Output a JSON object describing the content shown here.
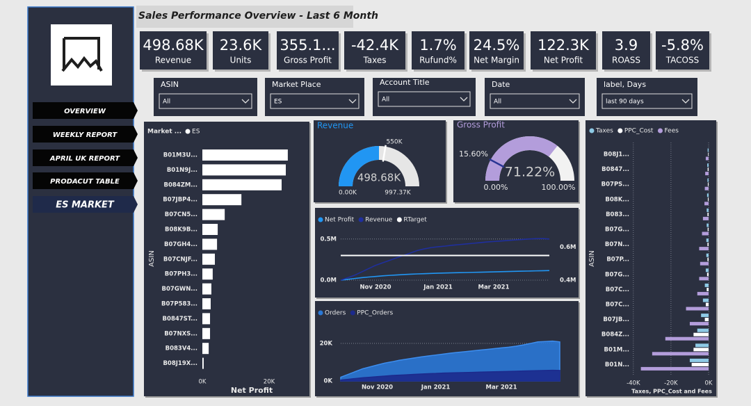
{
  "header": {
    "title": "Sales Performance Overview - Last 6 Month"
  },
  "nav": [
    "OVERVIEW",
    "WEEKLY REPORT",
    "APRIL UK REPORT",
    "PRODACUT TABLE",
    "ES MARKET"
  ],
  "kpis": [
    {
      "value": "498.68K",
      "label": "Revenue"
    },
    {
      "value": "23.6K",
      "label": "Units"
    },
    {
      "value": "355.1...",
      "label": "Gross Profit"
    },
    {
      "value": "-42.4K",
      "label": "Taxes"
    },
    {
      "value": "1.7%",
      "label": "Rufund%"
    },
    {
      "value": "24.5%",
      "label": "Net Margin"
    },
    {
      "value": "122.3K",
      "label": "Net Profit"
    },
    {
      "value": "3.9",
      "label": "ROASS"
    },
    {
      "value": "-5.8%",
      "label": "TACOSS"
    }
  ],
  "slicers": [
    {
      "label": "ASIN",
      "value": "All"
    },
    {
      "label": "Market Place",
      "value": "ES"
    },
    {
      "label": "Account Title",
      "value": "All"
    },
    {
      "label": "Date",
      "value": "All"
    },
    {
      "label": "label, Days",
      "value": "last 90 days"
    }
  ],
  "chart_data": [
    {
      "type": "bar",
      "legend_title": "Market ...",
      "categories": [
        "B01M3U...",
        "B01N9J...",
        "B084ZM...",
        "B07JBP4...",
        "B07CN5...",
        "B08K9B...",
        "B07GH4...",
        "B07CNJF...",
        "B07PH3...",
        "B07GWN...",
        "B07P583...",
        "B0847ST...",
        "B07NXS...",
        "B083V4...",
        "B08J19X..."
      ],
      "series": [
        {
          "name": "ES",
          "color": "#ffffff",
          "values": [
            25600,
            25000,
            23750,
            11700,
            6700,
            4600,
            4400,
            3750,
            3100,
            2700,
            2500,
            2300,
            2300,
            1900,
            400
          ]
        }
      ],
      "xlim": [
        0,
        30000
      ],
      "xticks": [
        {
          "value": 0,
          "label": "0K"
        },
        {
          "value": 20000,
          "label": "20K"
        }
      ],
      "xlabel": "Net Profit",
      "ylabel": "ASIN"
    },
    {
      "type": "gauge",
      "title": "Revenue",
      "title_color": "#2196f3",
      "value": 498680,
      "value_label": "498.68K",
      "min": 0,
      "min_label": "0.00K",
      "max": 997370,
      "max_label": "997.37K",
      "target": 550000,
      "target_label": "550K",
      "color": "#2196f3",
      "track_color": "#e6e6e6",
      "target_color": "#ffffff"
    },
    {
      "type": "gauge",
      "title": "Gross Profit",
      "title_color": "#b39ddb",
      "value": 71.22,
      "value_label": "71.22%",
      "min": 0,
      "min_label": "0.00%",
      "max": 100,
      "max_label": "100.00%",
      "target": 15.6,
      "target_label": "15.60%",
      "color": "#b39ddb",
      "track_color": "#f2f2f2",
      "target_color": "#283593"
    },
    {
      "type": "line",
      "categories": [
        null,
        null,
        null,
        null,
        null,
        "Nov 2020",
        null,
        null,
        null,
        null,
        null,
        null,
        null,
        null,
        "Jan 2021",
        null,
        null,
        null,
        null,
        null,
        null,
        null,
        "Mar 2021",
        null,
        null,
        null,
        null,
        null,
        null,
        null,
        null
      ],
      "series": [
        {
          "name": "Net Profit",
          "color": "#2196f3",
          "values": [
            0,
            10000,
            20000,
            30000,
            38000,
            45000,
            52000,
            58000,
            63000,
            68000,
            72000,
            76000,
            79000,
            82000,
            85000,
            87000,
            89000,
            91000,
            93000,
            95000,
            97000,
            99000,
            101000,
            103000,
            105000,
            107000,
            109000,
            111000,
            113000,
            115000,
            117000
          ]
        },
        {
          "name": "Revenue",
          "color": "#1f2f9e",
          "axis": "y2",
          "values": [
            400000,
            415000,
            430000,
            450000,
            470000,
            490000,
            505000,
            520000,
            535000,
            550000,
            565000,
            580000,
            590000,
            598000,
            603000,
            607000,
            612000,
            616000,
            620000,
            624000,
            628000,
            632000,
            635000,
            638000,
            641000,
            644000,
            647000,
            650000,
            652000,
            653000,
            650000
          ]
        },
        {
          "name": "RTarget",
          "color": "#ffffff",
          "axis": "y2",
          "values": [
            550000,
            550000,
            550000,
            550000,
            550000,
            550000,
            550000,
            550000,
            550000,
            550000,
            550000,
            550000,
            550000,
            550000,
            550000,
            550000,
            550000,
            550000,
            550000,
            550000,
            550000,
            550000,
            550000,
            550000,
            550000,
            550000,
            550000,
            550000,
            550000,
            550000,
            550000
          ]
        }
      ],
      "ylim": [
        0,
        600000
      ],
      "yticks": [
        {
          "value": 0,
          "label": "0.0M"
        },
        {
          "value": 500000,
          "label": "0.5M"
        }
      ],
      "y2lim": [
        400000,
        700000
      ],
      "y2ticks": [
        {
          "value": 400000,
          "label": "0.4M"
        },
        {
          "value": 600000,
          "label": "0.6M"
        }
      ],
      "grid": true
    },
    {
      "type": "area",
      "categories": [
        null,
        null,
        null,
        null,
        null,
        "Nov 2020",
        null,
        null,
        null,
        null,
        null,
        null,
        null,
        "Jan 2021",
        null,
        null,
        null,
        null,
        null,
        null,
        null,
        null,
        "Mar 2021",
        null,
        null,
        null,
        null,
        null,
        null,
        null,
        null
      ],
      "series": [
        {
          "name": "Orders",
          "color": "#2a78d6",
          "values": [
            2000,
            3500,
            5000,
            6500,
            7500,
            8500,
            9500,
            10200,
            11000,
            11600,
            12200,
            12800,
            13300,
            13800,
            14300,
            14800,
            15200,
            15600,
            16000,
            16400,
            16800,
            17200,
            17600,
            18000,
            18500,
            19200,
            20000,
            20800,
            21000,
            21200,
            20800
          ]
        },
        {
          "name": "PPC_Orders",
          "color": "#1c2a8c",
          "values": [
            500,
            900,
            1300,
            1700,
            2000,
            2300,
            2600,
            2900,
            3100,
            3300,
            3500,
            3700,
            3900,
            4000,
            4200,
            4300,
            4400,
            4500,
            4600,
            4700,
            4800,
            4900,
            5000,
            5100,
            5200,
            5300,
            5400,
            5500,
            5600,
            5700,
            5600
          ]
        }
      ],
      "ylim": [
        0,
        27000
      ],
      "yticks": [
        {
          "value": 0,
          "label": "0K"
        },
        {
          "value": 20000,
          "label": "20K"
        }
      ],
      "grid": true
    },
    {
      "type": "bar",
      "categories": [
        "B08J1...",
        "B0847...",
        "B07PS...",
        "B08K...",
        "B083...",
        "B07G...",
        "B07N...",
        "B07P...",
        "B07G...",
        "B07C...",
        "B07C...",
        "B07JB...",
        "B084Z...",
        "B01M...",
        "B01N..."
      ],
      "series": [
        {
          "name": "Taxes",
          "color": "#8ecae6",
          "values": [
            -500,
            -700,
            -600,
            -800,
            -1000,
            -1000,
            -1200,
            -1200,
            -1500,
            -2000,
            -3000,
            -4000,
            -6000,
            -7000,
            -10000
          ]
        },
        {
          "name": "PPC_Cost",
          "color": "#ffffff",
          "values": [
            -300,
            -500,
            -400,
            -400,
            -600,
            -500,
            -600,
            -600,
            -800,
            -1000,
            -1500,
            -2000,
            -8000,
            -8000,
            -9000
          ]
        },
        {
          "name": "Fees",
          "color": "#b39ddb",
          "values": [
            -1500,
            -1800,
            -2000,
            -2200,
            -3000,
            -3500,
            -5000,
            -4500,
            -5000,
            -6000,
            -12000,
            -10000,
            -23000,
            -30000,
            -36000
          ]
        }
      ],
      "xlim": [
        -44000,
        0
      ],
      "xticks": [
        {
          "value": -40000,
          "label": "-40K"
        },
        {
          "value": -20000,
          "label": "-20K"
        },
        {
          "value": 0,
          "label": "0K"
        }
      ],
      "xlabel": "Taxes, PPC_Cost and Fees",
      "ylabel": "ASIN",
      "grid": true
    }
  ]
}
